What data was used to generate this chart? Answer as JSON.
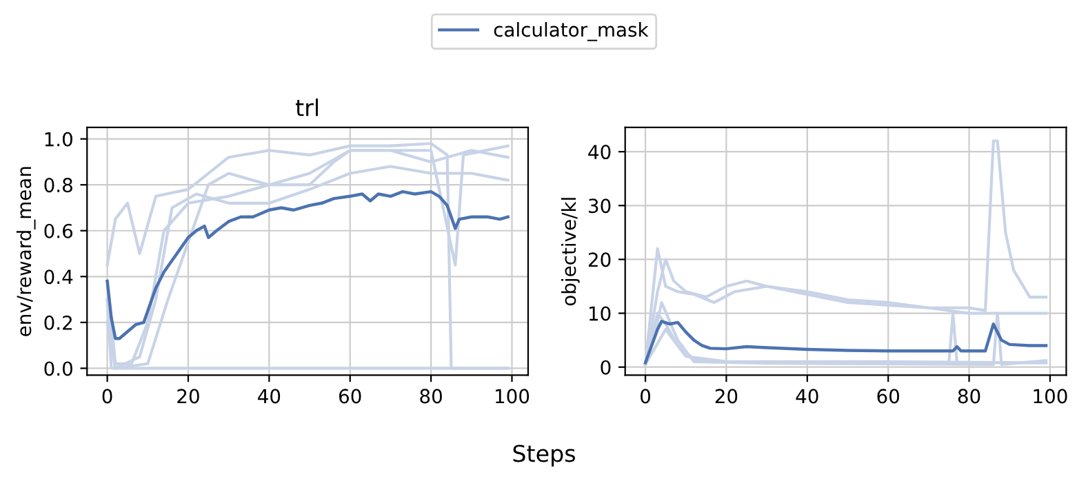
{
  "chart_data": [
    {
      "type": "line",
      "title": "trl",
      "xlabel": "Steps",
      "ylabel": "env/reward_mean",
      "legend": "top",
      "grid": true,
      "marker": "none",
      "line_style": "solid",
      "xlim": [
        -5,
        104
      ],
      "xticks": [
        0,
        20,
        40,
        60,
        80,
        100
      ],
      "ylim": [
        -0.03,
        1.05
      ],
      "yticks": [
        {
          "value": 0,
          "label": "0.0"
        },
        {
          "value": 0.2,
          "label": "0.2"
        },
        {
          "value": 0.4,
          "label": "0.4"
        },
        {
          "value": 0.6,
          "label": "0.6"
        },
        {
          "value": 0.8,
          "label": "0.8"
        },
        {
          "value": 1,
          "label": "1.0"
        }
      ],
      "series": [
        {
          "color": "#c8d3e7",
          "x": [
            0,
            2,
            5,
            8,
            12,
            20,
            25,
            30,
            40,
            50,
            60,
            70,
            80,
            84,
            85,
            99
          ],
          "values": [
            0.45,
            0.65,
            0.72,
            0.5,
            0.75,
            0.78,
            0.85,
            0.92,
            0.95,
            0.93,
            0.97,
            0.97,
            0.98,
            0.93,
            0,
            0
          ]
        },
        {
          "color": "#c8d3e7",
          "x": [
            0,
            1,
            99
          ],
          "values": [
            0.3,
            0,
            0
          ]
        },
        {
          "color": "#c8d3e7",
          "x": [
            0,
            2,
            6,
            10,
            14,
            20,
            30,
            40,
            50,
            56,
            60,
            70,
            80,
            86,
            88,
            99
          ],
          "values": [
            0.38,
            0.02,
            0.02,
            0.2,
            0.6,
            0.72,
            0.75,
            0.8,
            0.8,
            0.9,
            0.95,
            0.95,
            0.95,
            0.45,
            0.93,
            0.97
          ]
        },
        {
          "color": "#c8d3e7",
          "x": [
            0,
            2,
            8,
            12,
            16,
            22,
            30,
            40,
            50,
            60,
            70,
            80,
            90,
            99
          ],
          "values": [
            0.3,
            0,
            0.05,
            0.3,
            0.7,
            0.76,
            0.72,
            0.72,
            0.78,
            0.85,
            0.88,
            0.85,
            0.85,
            0.82
          ]
        },
        {
          "color": "#c8d3e7",
          "x": [
            0,
            2,
            10,
            15,
            20,
            25,
            30,
            40,
            50,
            60,
            70,
            80,
            90,
            99
          ],
          "values": [
            0.2,
            0,
            0.02,
            0.3,
            0.55,
            0.8,
            0.85,
            0.8,
            0.85,
            0.95,
            0.95,
            0.9,
            0.95,
            0.92
          ]
        },
        {
          "name": "calculator_mask",
          "color": "#4c72b0",
          "x": [
            0,
            1,
            2,
            3,
            5,
            7,
            9,
            10,
            12,
            14,
            16,
            18,
            20,
            22,
            24,
            25,
            27,
            30,
            33,
            36,
            40,
            43,
            46,
            50,
            53,
            56,
            60,
            63,
            65,
            67,
            70,
            73,
            76,
            80,
            82,
            84,
            86,
            87,
            90,
            94,
            97,
            99
          ],
          "values": [
            0.38,
            0.22,
            0.13,
            0.13,
            0.16,
            0.19,
            0.2,
            0.25,
            0.35,
            0.42,
            0.47,
            0.52,
            0.57,
            0.6,
            0.62,
            0.57,
            0.6,
            0.64,
            0.66,
            0.66,
            0.69,
            0.7,
            0.69,
            0.71,
            0.72,
            0.74,
            0.75,
            0.76,
            0.73,
            0.76,
            0.75,
            0.77,
            0.76,
            0.77,
            0.75,
            0.71,
            0.61,
            0.65,
            0.66,
            0.66,
            0.65,
            0.66
          ]
        }
      ]
    },
    {
      "type": "line",
      "ylabel": "objective/kl",
      "legend": "top",
      "grid": true,
      "marker": "none",
      "line_style": "solid",
      "xlim": [
        -5,
        104
      ],
      "xticks": [
        0,
        20,
        40,
        60,
        80,
        100
      ],
      "ylim": [
        -1.5,
        44.5
      ],
      "yticks": [
        0,
        10,
        20,
        30,
        40
      ],
      "series": [
        {
          "color": "#c8d3e7",
          "x": [
            0,
            3,
            5,
            7,
            10,
            15,
            20,
            25,
            30,
            40,
            50,
            60,
            70,
            80,
            84,
            86,
            87,
            89,
            91,
            95,
            99
          ],
          "values": [
            0.5,
            14,
            20,
            16,
            14,
            13,
            15,
            16,
            15,
            14,
            12.5,
            12,
            11,
            11,
            10.5,
            42,
            42,
            25,
            18,
            13,
            13
          ]
        },
        {
          "color": "#c8d3e7",
          "x": [
            0,
            3,
            5,
            8,
            12,
            17,
            22,
            30,
            40,
            50,
            60,
            70,
            80,
            90,
            99
          ],
          "values": [
            0.5,
            22,
            15,
            14,
            13.5,
            12,
            14,
            15,
            13.5,
            12,
            11.5,
            11,
            10,
            10,
            10
          ]
        },
        {
          "color": "#c8d3e7",
          "x": [
            0,
            3,
            5,
            8,
            12,
            20,
            40,
            60,
            75,
            76,
            77,
            99
          ],
          "values": [
            0.5,
            10,
            8,
            4,
            1.5,
            1,
            0.8,
            0.8,
            0.8,
            10,
            0.8,
            0.8
          ]
        },
        {
          "color": "#c8d3e7",
          "x": [
            0,
            2,
            4,
            8,
            12,
            30,
            86,
            87,
            88,
            99
          ],
          "values": [
            0.5,
            5,
            12,
            5,
            1,
            0.7,
            0.5,
            10,
            0.5,
            1.2
          ]
        },
        {
          "color": "#c8d3e7",
          "x": [
            0,
            5,
            10,
            20,
            60,
            99
          ],
          "values": [
            0.5,
            7,
            2,
            1,
            1,
            0.8
          ]
        },
        {
          "name": "calculator_mask",
          "color": "#4c72b0",
          "x": [
            0,
            3,
            4,
            6,
            8,
            10,
            12,
            14,
            16,
            20,
            25,
            30,
            40,
            50,
            60,
            70,
            76,
            77,
            78,
            84,
            86,
            88,
            90,
            95,
            99
          ],
          "values": [
            0.8,
            7,
            8.5,
            8,
            8.3,
            6.5,
            5,
            4,
            3.5,
            3.4,
            3.8,
            3.6,
            3.3,
            3.1,
            3,
            3,
            3,
            3.8,
            3,
            3,
            8,
            5,
            4.2,
            4,
            4
          ]
        }
      ]
    }
  ]
}
